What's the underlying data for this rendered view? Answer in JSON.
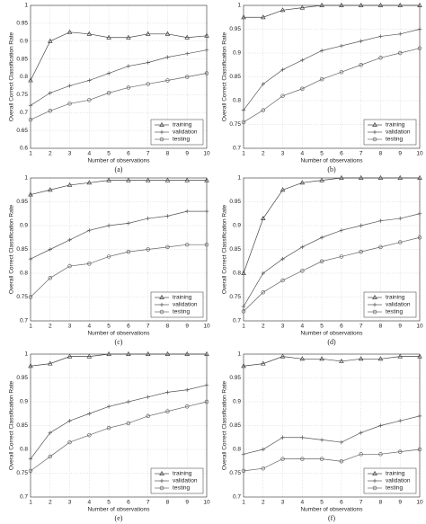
{
  "chart_data": [
    {
      "type": "line",
      "caption": "(a)",
      "xlabel": "Number of observations",
      "ylabel": "Overall Correct Classification Rate",
      "x": [
        1,
        2,
        3,
        4,
        5,
        6,
        7,
        8,
        9,
        10
      ],
      "xlim": [
        1,
        10
      ],
      "xticks": [
        1,
        2,
        3,
        4,
        5,
        6,
        7,
        8,
        9,
        10
      ],
      "ylim": [
        0.6,
        1
      ],
      "yticks": [
        0.6,
        0.65,
        0.7,
        0.75,
        0.8,
        0.85,
        0.9,
        0.95,
        1
      ],
      "grid": true,
      "legend": "lower right",
      "series": [
        {
          "name": "training",
          "color": "#444",
          "marker": "triangle",
          "values": [
            0.79,
            0.9,
            0.925,
            0.92,
            0.91,
            0.91,
            0.92,
            0.92,
            0.91,
            0.915
          ]
        },
        {
          "name": "validation",
          "color": "#555",
          "marker": "plus",
          "values": [
            0.72,
            0.755,
            0.775,
            0.79,
            0.81,
            0.83,
            0.84,
            0.855,
            0.865,
            0.875
          ]
        },
        {
          "name": "testing",
          "color": "#666",
          "marker": "circle",
          "values": [
            0.68,
            0.705,
            0.725,
            0.735,
            0.755,
            0.77,
            0.78,
            0.79,
            0.8,
            0.81
          ]
        }
      ]
    },
    {
      "type": "line",
      "caption": "(b)",
      "xlabel": "Number of observations",
      "ylabel": "Overall Correct Classification Rate",
      "x": [
        1,
        2,
        3,
        4,
        5,
        6,
        7,
        8,
        9,
        10
      ],
      "xlim": [
        1,
        10
      ],
      "xticks": [
        1,
        2,
        3,
        4,
        5,
        6,
        7,
        8,
        9,
        10
      ],
      "ylim": [
        0.7,
        1
      ],
      "yticks": [
        0.7,
        0.75,
        0.8,
        0.85,
        0.9,
        0.95,
        1
      ],
      "grid": true,
      "legend": "lower right",
      "series": [
        {
          "name": "training",
          "color": "#444",
          "marker": "triangle",
          "values": [
            0.975,
            0.975,
            0.99,
            0.995,
            1,
            1,
            1,
            1,
            1,
            1
          ]
        },
        {
          "name": "validation",
          "color": "#555",
          "marker": "plus",
          "values": [
            0.78,
            0.835,
            0.865,
            0.885,
            0.905,
            0.915,
            0.925,
            0.935,
            0.94,
            0.95
          ]
        },
        {
          "name": "testing",
          "color": "#666",
          "marker": "circle",
          "values": [
            0.755,
            0.78,
            0.81,
            0.825,
            0.845,
            0.86,
            0.875,
            0.89,
            0.9,
            0.91
          ]
        }
      ]
    },
    {
      "type": "line",
      "caption": "(c)",
      "xlabel": "Number of observations",
      "ylabel": "Overall Correct Classification Rate",
      "x": [
        1,
        2,
        3,
        4,
        5,
        6,
        7,
        8,
        9,
        10
      ],
      "xlim": [
        1,
        10
      ],
      "xticks": [
        1,
        2,
        3,
        4,
        5,
        6,
        7,
        8,
        9,
        10
      ],
      "ylim": [
        0.7,
        1
      ],
      "yticks": [
        0.7,
        0.75,
        0.8,
        0.85,
        0.9,
        0.95,
        1
      ],
      "grid": true,
      "legend": "lower right",
      "series": [
        {
          "name": "training",
          "color": "#444",
          "marker": "triangle",
          "values": [
            0.965,
            0.975,
            0.985,
            0.99,
            0.995,
            0.995,
            0.995,
            0.995,
            0.995,
            0.995
          ]
        },
        {
          "name": "validation",
          "color": "#555",
          "marker": "plus",
          "values": [
            0.83,
            0.85,
            0.87,
            0.89,
            0.9,
            0.905,
            0.915,
            0.92,
            0.93,
            0.93
          ]
        },
        {
          "name": "testing",
          "color": "#666",
          "marker": "circle",
          "values": [
            0.75,
            0.79,
            0.815,
            0.82,
            0.835,
            0.845,
            0.85,
            0.855,
            0.86,
            0.86
          ]
        }
      ]
    },
    {
      "type": "line",
      "caption": "(d)",
      "xlabel": "Number of observations",
      "ylabel": "Overall Correct Classification Rate",
      "x": [
        1,
        2,
        3,
        4,
        5,
        6,
        7,
        8,
        9,
        10
      ],
      "xlim": [
        1,
        10
      ],
      "xticks": [
        1,
        2,
        3,
        4,
        5,
        6,
        7,
        8,
        9,
        10
      ],
      "ylim": [
        0.7,
        1
      ],
      "yticks": [
        0.7,
        0.75,
        0.8,
        0.85,
        0.9,
        0.95,
        1
      ],
      "grid": true,
      "legend": "lower right",
      "series": [
        {
          "name": "training",
          "color": "#444",
          "marker": "triangle",
          "values": [
            0.8,
            0.915,
            0.975,
            0.99,
            0.995,
            1,
            1,
            1,
            1,
            1
          ]
        },
        {
          "name": "validation",
          "color": "#555",
          "marker": "plus",
          "values": [
            0.73,
            0.8,
            0.83,
            0.855,
            0.875,
            0.89,
            0.9,
            0.91,
            0.915,
            0.925
          ]
        },
        {
          "name": "testing",
          "color": "#666",
          "marker": "circle",
          "values": [
            0.72,
            0.76,
            0.785,
            0.805,
            0.825,
            0.835,
            0.845,
            0.855,
            0.865,
            0.875
          ]
        }
      ]
    },
    {
      "type": "line",
      "caption": "(e)",
      "xlabel": "Number of observations",
      "ylabel": "Overall Correct Classification Rate",
      "x": [
        1,
        2,
        3,
        4,
        5,
        6,
        7,
        8,
        9,
        10
      ],
      "xlim": [
        1,
        10
      ],
      "xticks": [
        1,
        2,
        3,
        4,
        5,
        6,
        7,
        8,
        9,
        10
      ],
      "ylim": [
        0.7,
        1
      ],
      "yticks": [
        0.7,
        0.75,
        0.8,
        0.85,
        0.9,
        0.95,
        1
      ],
      "grid": true,
      "legend": "lower right",
      "series": [
        {
          "name": "training",
          "color": "#444",
          "marker": "triangle",
          "values": [
            0.975,
            0.98,
            0.995,
            0.995,
            1,
            1,
            1,
            1,
            1,
            1
          ]
        },
        {
          "name": "validation",
          "color": "#555",
          "marker": "plus",
          "values": [
            0.78,
            0.835,
            0.86,
            0.875,
            0.89,
            0.9,
            0.91,
            0.92,
            0.925,
            0.935
          ]
        },
        {
          "name": "testing",
          "color": "#666",
          "marker": "circle",
          "values": [
            0.755,
            0.785,
            0.815,
            0.83,
            0.845,
            0.855,
            0.87,
            0.88,
            0.89,
            0.9
          ]
        }
      ]
    },
    {
      "type": "line",
      "caption": "(f)",
      "xlabel": "Number of observations",
      "ylabel": "Overall Correct Classification Rate",
      "x": [
        1,
        2,
        3,
        4,
        5,
        6,
        7,
        8,
        9,
        10
      ],
      "xlim": [
        1,
        10
      ],
      "xticks": [
        1,
        2,
        3,
        4,
        5,
        6,
        7,
        8,
        9,
        10
      ],
      "ylim": [
        0.7,
        1
      ],
      "yticks": [
        0.7,
        0.75,
        0.8,
        0.85,
        0.9,
        0.95,
        1
      ],
      "grid": true,
      "legend": "lower right",
      "series": [
        {
          "name": "training",
          "color": "#444",
          "marker": "triangle",
          "values": [
            0.975,
            0.98,
            0.995,
            0.99,
            0.99,
            0.985,
            0.99,
            0.99,
            0.995,
            0.995
          ]
        },
        {
          "name": "validation",
          "color": "#555",
          "marker": "plus",
          "values": [
            0.79,
            0.8,
            0.825,
            0.825,
            0.82,
            0.815,
            0.835,
            0.85,
            0.86,
            0.87
          ]
        },
        {
          "name": "testing",
          "color": "#666",
          "marker": "circle",
          "values": [
            0.755,
            0.76,
            0.78,
            0.78,
            0.78,
            0.775,
            0.79,
            0.79,
            0.795,
            0.8
          ]
        }
      ]
    }
  ]
}
